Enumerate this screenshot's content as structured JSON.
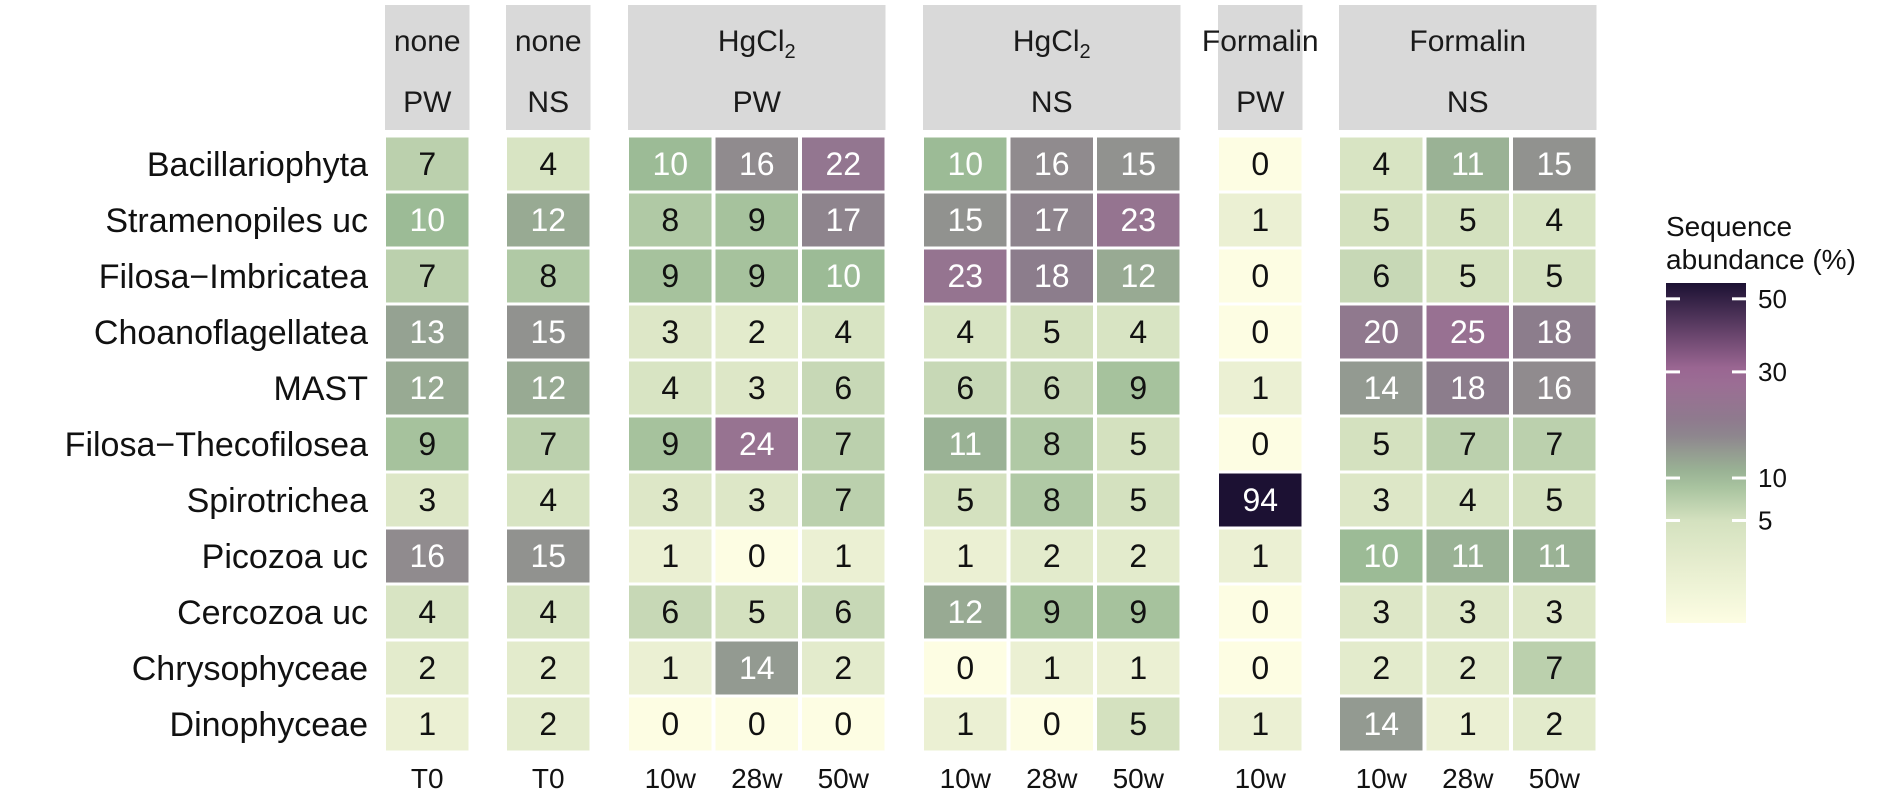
{
  "chart_data": {
    "type": "heatmap",
    "title": "",
    "rows": [
      "Bacillariophyta",
      "Stramenopiles uc",
      "Filosa−Imbricatea",
      "Choanoflagellatea",
      "MAST",
      "Filosa−Thecofilosea",
      "Spirotrichea",
      "Picozoa uc",
      "Cercozoa uc",
      "Chrysophyceae",
      "Dinophyceae"
    ],
    "facets": [
      {
        "preservative": "none",
        "sample": "PW",
        "columns": [
          "T0"
        ],
        "values": [
          [
            7
          ],
          [
            10
          ],
          [
            7
          ],
          [
            13
          ],
          [
            12
          ],
          [
            9
          ],
          [
            3
          ],
          [
            16
          ],
          [
            4
          ],
          [
            2
          ],
          [
            1
          ]
        ]
      },
      {
        "preservative": "none",
        "sample": "NS",
        "columns": [
          "T0"
        ],
        "values": [
          [
            4
          ],
          [
            12
          ],
          [
            8
          ],
          [
            15
          ],
          [
            12
          ],
          [
            7
          ],
          [
            4
          ],
          [
            15
          ],
          [
            4
          ],
          [
            2
          ],
          [
            2
          ]
        ]
      },
      {
        "preservative": "HgCl2",
        "sample": "PW",
        "columns": [
          "10w",
          "28w",
          "50w"
        ],
        "values": [
          [
            10,
            16,
            22
          ],
          [
            8,
            9,
            17
          ],
          [
            9,
            9,
            10
          ],
          [
            3,
            2,
            4
          ],
          [
            4,
            3,
            6
          ],
          [
            9,
            24,
            7
          ],
          [
            3,
            3,
            7
          ],
          [
            1,
            0,
            1
          ],
          [
            6,
            5,
            6
          ],
          [
            1,
            14,
            2
          ],
          [
            0,
            0,
            0
          ]
        ]
      },
      {
        "preservative": "HgCl2",
        "sample": "NS",
        "columns": [
          "10w",
          "28w",
          "50w"
        ],
        "values": [
          [
            10,
            16,
            15
          ],
          [
            15,
            17,
            23
          ],
          [
            23,
            18,
            12
          ],
          [
            4,
            5,
            4
          ],
          [
            6,
            6,
            9
          ],
          [
            11,
            8,
            5
          ],
          [
            5,
            8,
            5
          ],
          [
            1,
            2,
            2
          ],
          [
            12,
            9,
            9
          ],
          [
            0,
            1,
            1
          ],
          [
            1,
            0,
            5
          ]
        ]
      },
      {
        "preservative": "Formalin",
        "sample": "PW",
        "columns": [
          "10w"
        ],
        "values": [
          [
            0
          ],
          [
            1
          ],
          [
            0
          ],
          [
            0
          ],
          [
            1
          ],
          [
            0
          ],
          [
            94
          ],
          [
            1
          ],
          [
            0
          ],
          [
            0
          ],
          [
            1
          ]
        ]
      },
      {
        "preservative": "Formalin",
        "sample": "NS",
        "columns": [
          "10w",
          "28w",
          "50w"
        ],
        "values": [
          [
            4,
            11,
            15
          ],
          [
            5,
            5,
            4
          ],
          [
            6,
            5,
            5
          ],
          [
            20,
            25,
            18
          ],
          [
            14,
            18,
            16
          ],
          [
            5,
            7,
            7
          ],
          [
            3,
            4,
            5
          ],
          [
            10,
            11,
            11
          ],
          [
            3,
            3,
            3
          ],
          [
            2,
            2,
            7
          ],
          [
            14,
            1,
            2
          ]
        ]
      }
    ],
    "legend": {
      "title_lines": [
        "Sequence",
        "abundance (%)"
      ],
      "ticks": [
        5,
        10,
        30,
        50
      ],
      "scale": "sqrt",
      "range": [
        0,
        55
      ],
      "placement": "right",
      "colors": [
        "#fdfde3",
        "#9cbb96",
        "#8c7d8c",
        "#a06a96",
        "#1c1133"
      ]
    }
  }
}
